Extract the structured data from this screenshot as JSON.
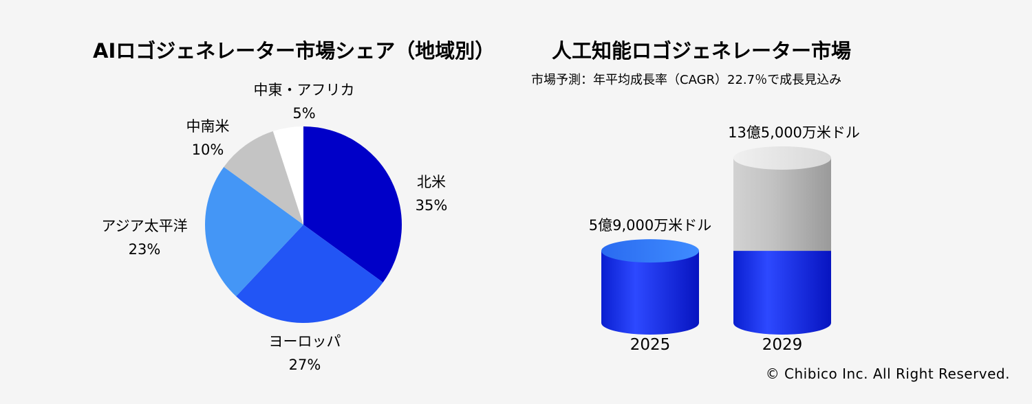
{
  "copyright": "© Chibico Inc. All Right Reserved.",
  "chart_data": [
    {
      "type": "pie",
      "title": "AIロゴジェネレーター市場シェア（地域別）",
      "unit": "%",
      "slices": [
        {
          "name": "北米",
          "value": 35,
          "label": "35%",
          "color": "#0000c8"
        },
        {
          "name": "ヨーロッパ",
          "value": 27,
          "label": "27%",
          "color": "#2255f5"
        },
        {
          "name": "アジア太平洋",
          "value": 23,
          "label": "23%",
          "color": "#4496f6"
        },
        {
          "name": "中南米",
          "value": 10,
          "label": "10%",
          "color": "#c4c4c4"
        },
        {
          "name": "中東・アフリカ",
          "value": 5,
          "label": "5%",
          "color": "#ffffff"
        }
      ]
    },
    {
      "type": "bar",
      "title": "人工知能ロゴジェネレーター市場",
      "subtitle": "市場予測：年平均成長率（CAGR）22.7％で成長見込み",
      "categories": [
        "2025",
        "2029"
      ],
      "values": [
        590000000,
        1350000000
      ],
      "value_labels": [
        "5億9,000万米ドル",
        "13億5,000万米ドル"
      ],
      "colors": {
        "base": "#1f3ff0",
        "growth": "#b8b8b8"
      }
    }
  ]
}
